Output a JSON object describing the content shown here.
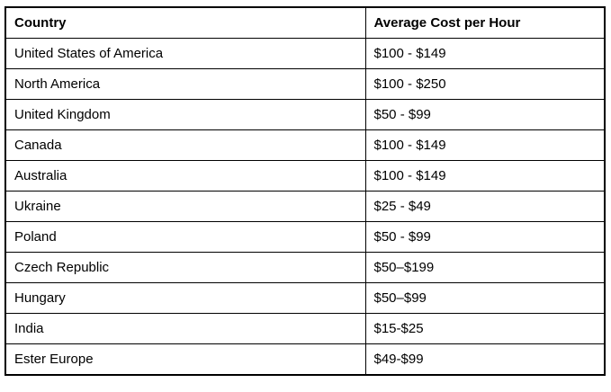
{
  "table": {
    "name": "average-cost-per-hour-by-country",
    "columns": [
      "Country",
      "Average Cost per Hour"
    ],
    "rows": [
      {
        "country": "United States of America",
        "cost": "$100 - $149"
      },
      {
        "country": "North America",
        "cost": "$100 - $250"
      },
      {
        "country": "United Kingdom",
        "cost": "$50 - $99"
      },
      {
        "country": "Canada",
        "cost": "$100 - $149"
      },
      {
        "country": "Australia",
        "cost": "$100 - $149"
      },
      {
        "country": "Ukraine",
        "cost": "$25 - $49"
      },
      {
        "country": "Poland",
        "cost": "$50 - $99"
      },
      {
        "country": "Czech Republic",
        "cost": "$50–$199"
      },
      {
        "country": "Hungary",
        "cost": "$50–$99"
      },
      {
        "country": "India",
        "cost": "$15-$25"
      },
      {
        "country": "Ester Europe",
        "cost": "$49-$99"
      }
    ]
  },
  "colors": {
    "border": "#000000",
    "text": "#000000",
    "background": "#ffffff"
  }
}
